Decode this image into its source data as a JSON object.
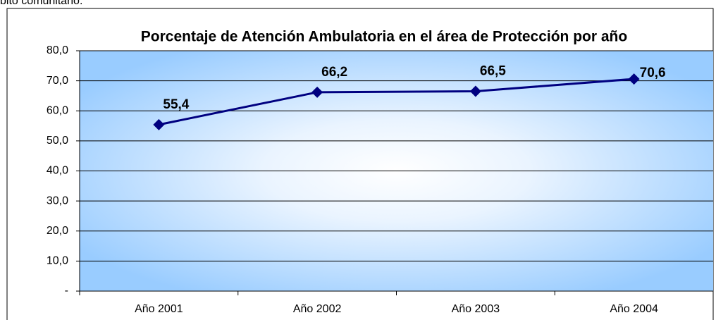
{
  "caption": "bito comunitario.",
  "chart_data": {
    "type": "line",
    "title": "Porcentaje de Atención Ambulatoria en el área de Protección por año",
    "categories": [
      "Año 2001",
      "Año 2002",
      "Año 2003",
      "Año 2004"
    ],
    "values": [
      55.4,
      66.2,
      66.5,
      70.6
    ],
    "value_labels": [
      "55,4",
      "66,2",
      "66,5",
      "70,6"
    ],
    "color": "#000080",
    "ylim": [
      0,
      80
    ],
    "yticks": [
      {
        "value": 0,
        "label": "-"
      },
      {
        "value": 10,
        "label": "10,0"
      },
      {
        "value": 20,
        "label": "20,0"
      },
      {
        "value": 30,
        "label": "30,0"
      },
      {
        "value": 40,
        "label": "40,0"
      },
      {
        "value": 50,
        "label": "50,0"
      },
      {
        "value": 60,
        "label": "60,0"
      },
      {
        "value": 70,
        "label": "70,0"
      },
      {
        "value": 80,
        "label": "80,0"
      }
    ],
    "grid": true
  }
}
